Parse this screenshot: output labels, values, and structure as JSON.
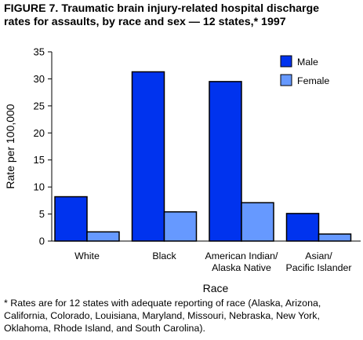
{
  "title_line1": "FIGURE 7. Traumatic brain injury-related hospital discharge",
  "title_line2": "rates for assaults, by race and sex — 12 states,* 1997",
  "footnote_line1": "* Rates are for 12 states with adequate reporting of race (Alaska, Arizona,",
  "footnote_line2": "California, Colorado, Louisiana, Maryland, Missouri, Nebraska, New York,",
  "footnote_line3": "Oklahoma, Rhode Island, and South Carolina).",
  "chart_data": {
    "type": "bar",
    "title": "FIGURE 7. Traumatic brain injury-related hospital discharge rates for assaults, by race and sex — 12 states,* 1997",
    "xlabel": "Race",
    "ylabel": "Rate per 100,000",
    "ylim": [
      0,
      35
    ],
    "yticks": [
      "0",
      "5",
      "10",
      "15",
      "20",
      "25",
      "30",
      "35"
    ],
    "grid": false,
    "legend_position": "top-right",
    "categories": [
      [
        "White"
      ],
      [
        "Black"
      ],
      [
        "American Indian/",
        "Alaska Native"
      ],
      [
        "Asian/",
        "Pacific Islander"
      ]
    ],
    "series": [
      {
        "name": "Male",
        "color": "#0033ee",
        "values": [
          8.2,
          31.3,
          29.5,
          5.1
        ]
      },
      {
        "name": "Female",
        "color": "#6699ff",
        "values": [
          1.7,
          5.4,
          7.1,
          1.3
        ]
      }
    ]
  }
}
